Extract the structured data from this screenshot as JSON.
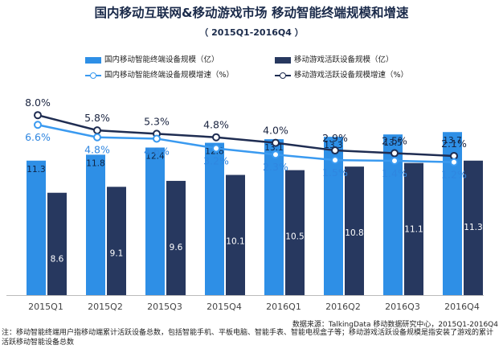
{
  "title": "国内移动互联网&移动游戏市场  移动智能终端规模和增速",
  "subtitle": "（ 2015Q1-2016Q4 ）",
  "source": "数据来源：TalkingData 移动数据研究中心，2015Q1-2016Q4",
  "note": "注：移动智能终端用户指移动端累计活跃设备总数，包括智能手机、平板电脑、智能手表、智能电视盒子等；移动游戏活跃设备规模是指安装了游戏的累计活跃移动智能设备总数",
  "colors": {
    "bar1": "#2e8fe6",
    "bar2": "#27385f",
    "line1": "#3a9af0",
    "line2": "#1f2d52"
  },
  "chart_data": {
    "type": "bar",
    "categories": [
      "2015Q1",
      "2015Q2",
      "2015Q3",
      "2015Q4",
      "2016Q1",
      "2016Q2",
      "2016Q3",
      "2016Q4"
    ],
    "series": [
      {
        "name": "国内移动智能终端设备规模（亿）",
        "type": "bar",
        "values": [
          11.3,
          11.8,
          12.4,
          12.8,
          13.1,
          13.3,
          13.5,
          13.7
        ]
      },
      {
        "name": "移动游戏活跃设备规模（亿）",
        "type": "bar",
        "values": [
          8.6,
          9.1,
          9.6,
          10.1,
          10.5,
          10.8,
          11.1,
          11.3
        ]
      },
      {
        "name": "国内移动智能终端设备规模增速（%）",
        "type": "line",
        "values": [
          6.6,
          4.8,
          4.6,
          3.2,
          2.3,
          1.5,
          1.4,
          1.2
        ],
        "labels": [
          "6.6%",
          "4.8%",
          "4.6%",
          "3.2%",
          "2.3%",
          "1.5%",
          "1.4%",
          "1.2%"
        ]
      },
      {
        "name": "移动游戏活跃设备规模增速（%）",
        "type": "line",
        "values": [
          8.0,
          5.8,
          5.3,
          4.8,
          4.0,
          2.9,
          2.5,
          2.1
        ],
        "labels": [
          "8.0%",
          "5.8%",
          "5.3%",
          "4.8%",
          "4.0%",
          "2.9%",
          "2.5%",
          "2.1%"
        ]
      }
    ],
    "legend_position": "top",
    "grid": false
  }
}
